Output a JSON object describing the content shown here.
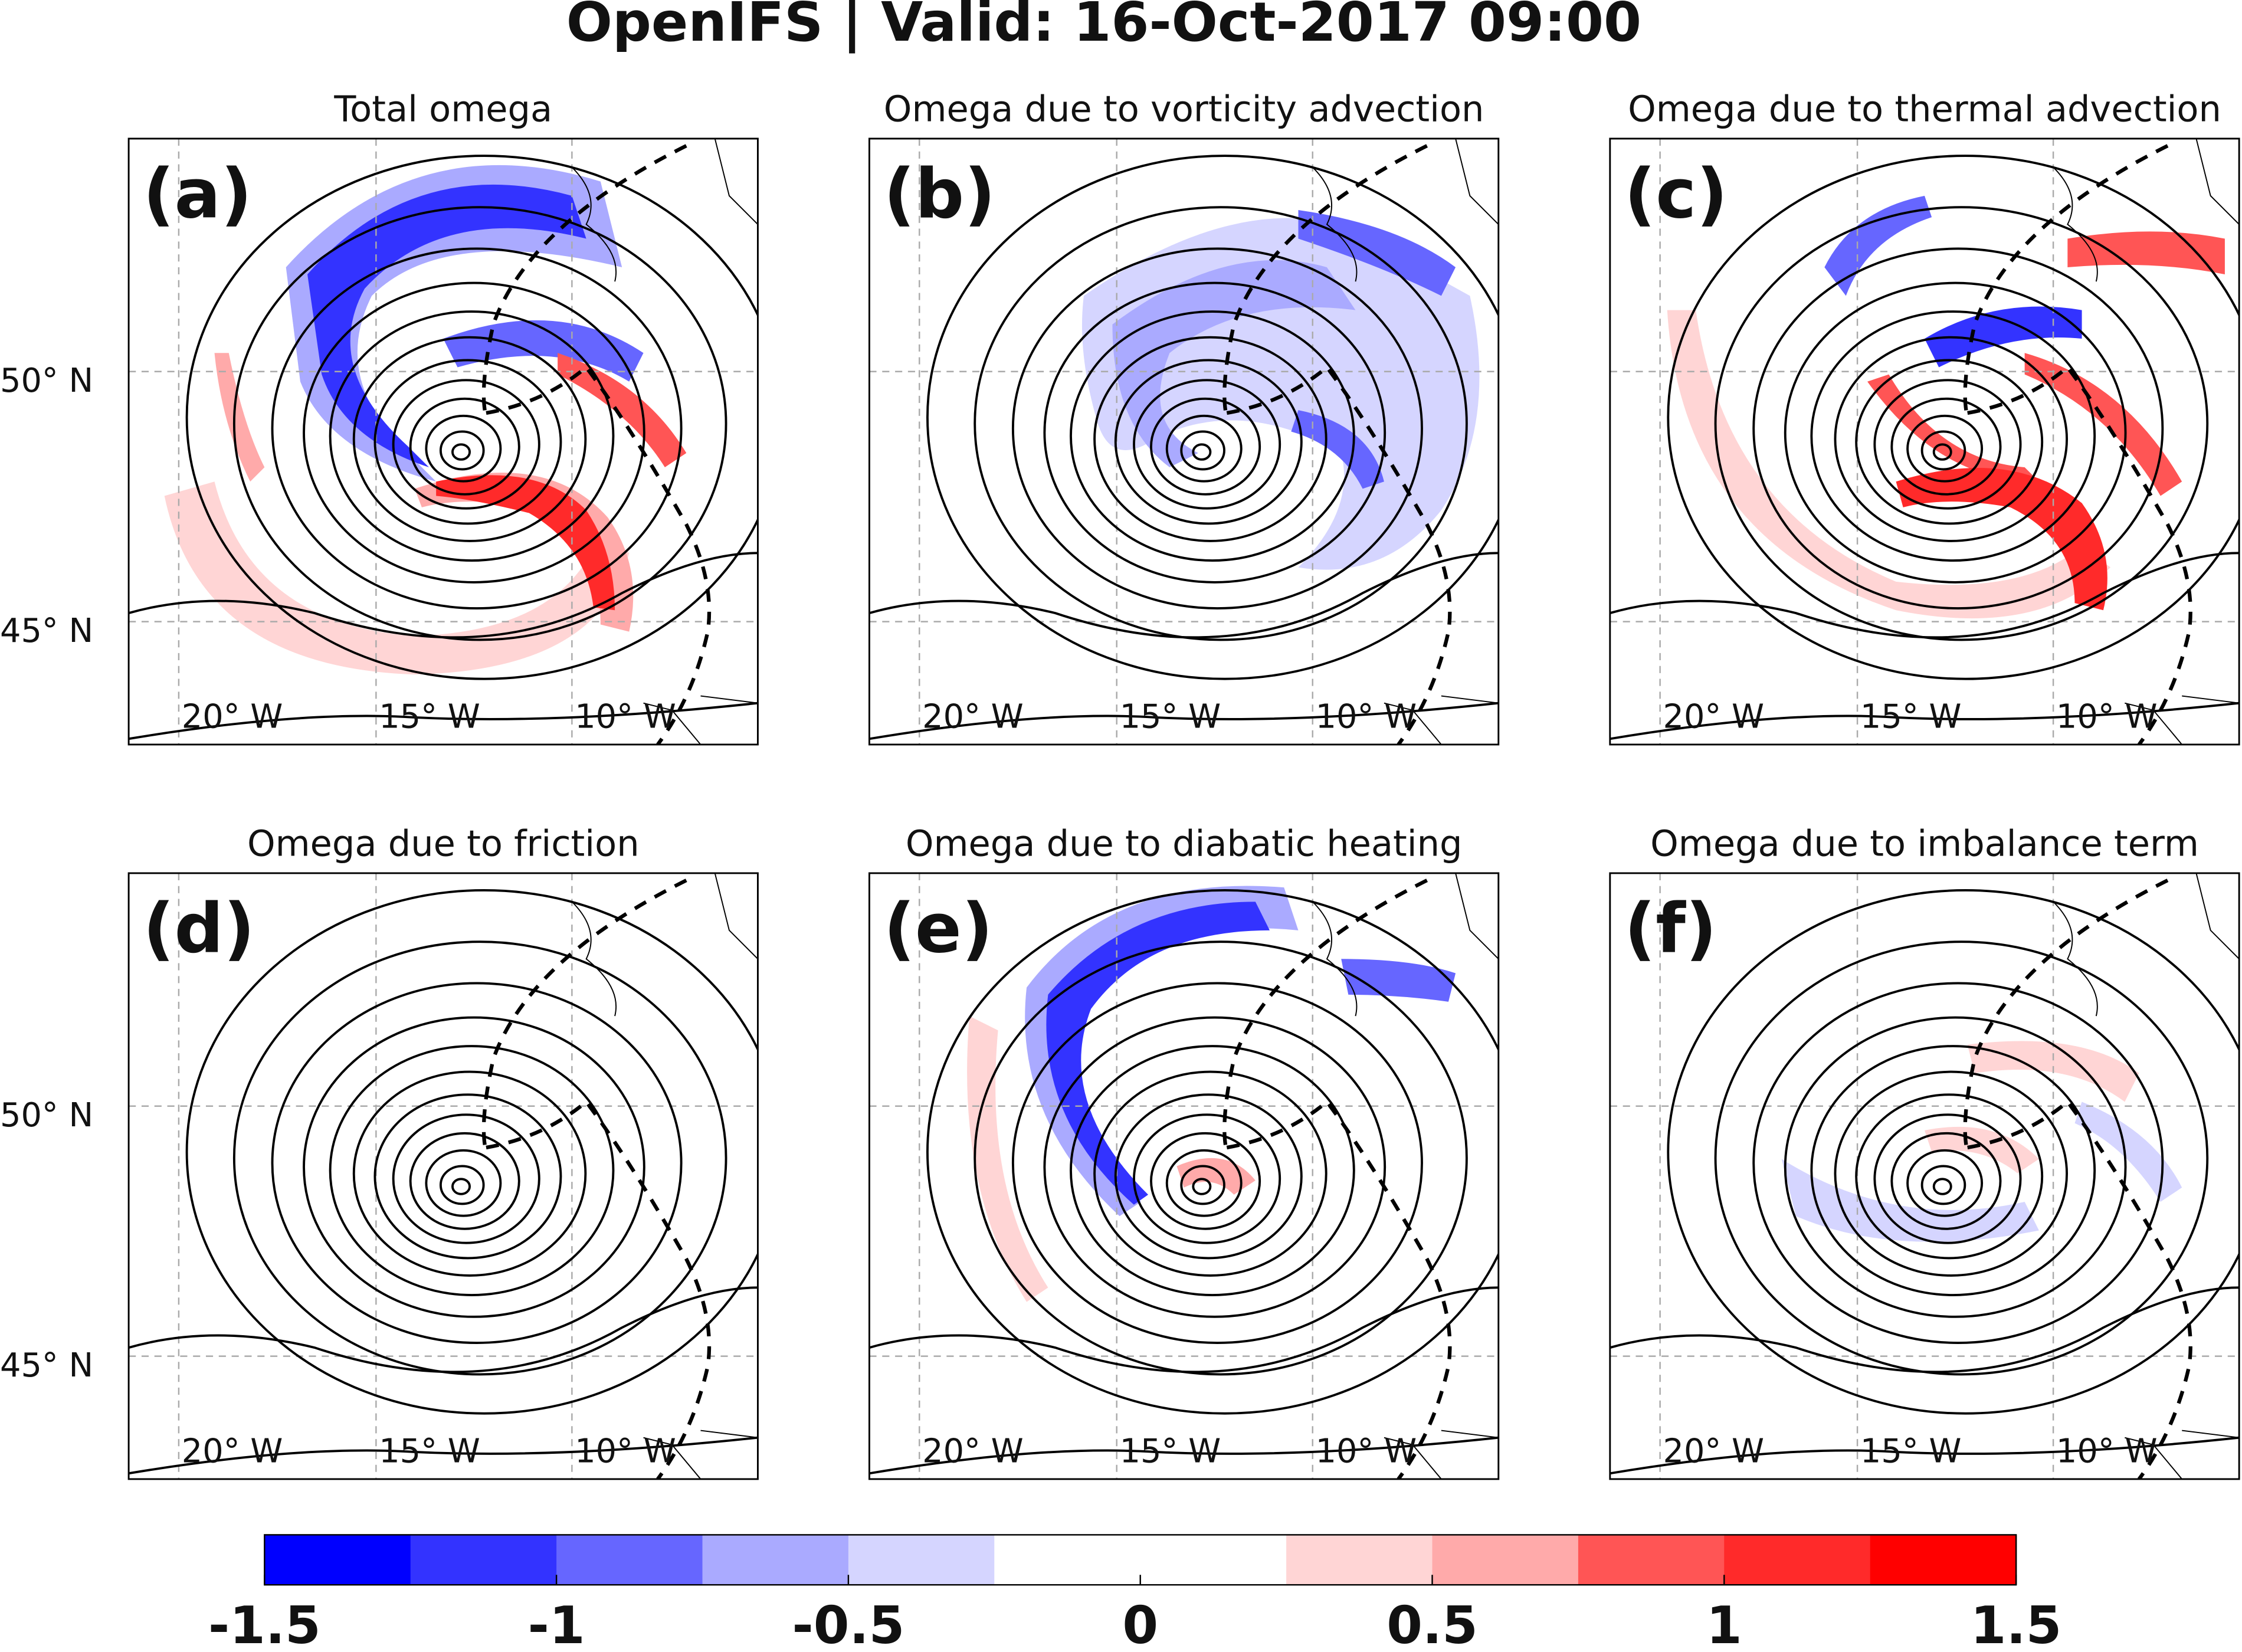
{
  "title": "OpenIFS | Valid: 16-Oct-2017 09:00",
  "panels": [
    {
      "label": "(a)",
      "title": "Total omega"
    },
    {
      "label": "(b)",
      "title": "Omega due to vorticity advection"
    },
    {
      "label": "(c)",
      "title": "Omega due to thermal advection"
    },
    {
      "label": "(d)",
      "title": "Omega due to friction"
    },
    {
      "label": "(e)",
      "title": "Omega due to diabatic heating"
    },
    {
      "label": "(f)",
      "title": "Omega due to imbalance term"
    }
  ],
  "lat_labels": [
    "50° N",
    "45° N"
  ],
  "lon_labels": [
    "20° W",
    "15° W",
    "10° W"
  ],
  "colorbar": {
    "lim": [
      -1.5,
      1.5
    ],
    "ticks": [
      -1.5,
      -1,
      -0.5,
      0,
      0.5,
      1,
      1.5
    ],
    "colors": [
      "#0000ff",
      "#3333ff",
      "#6666ff",
      "#aaaaff",
      "#d5d5ff",
      "#ffffff",
      "#ffffff",
      "#ffd5d5",
      "#ffaaaa",
      "#ff5555",
      "#ff2a2a",
      "#ff0000"
    ]
  }
}
